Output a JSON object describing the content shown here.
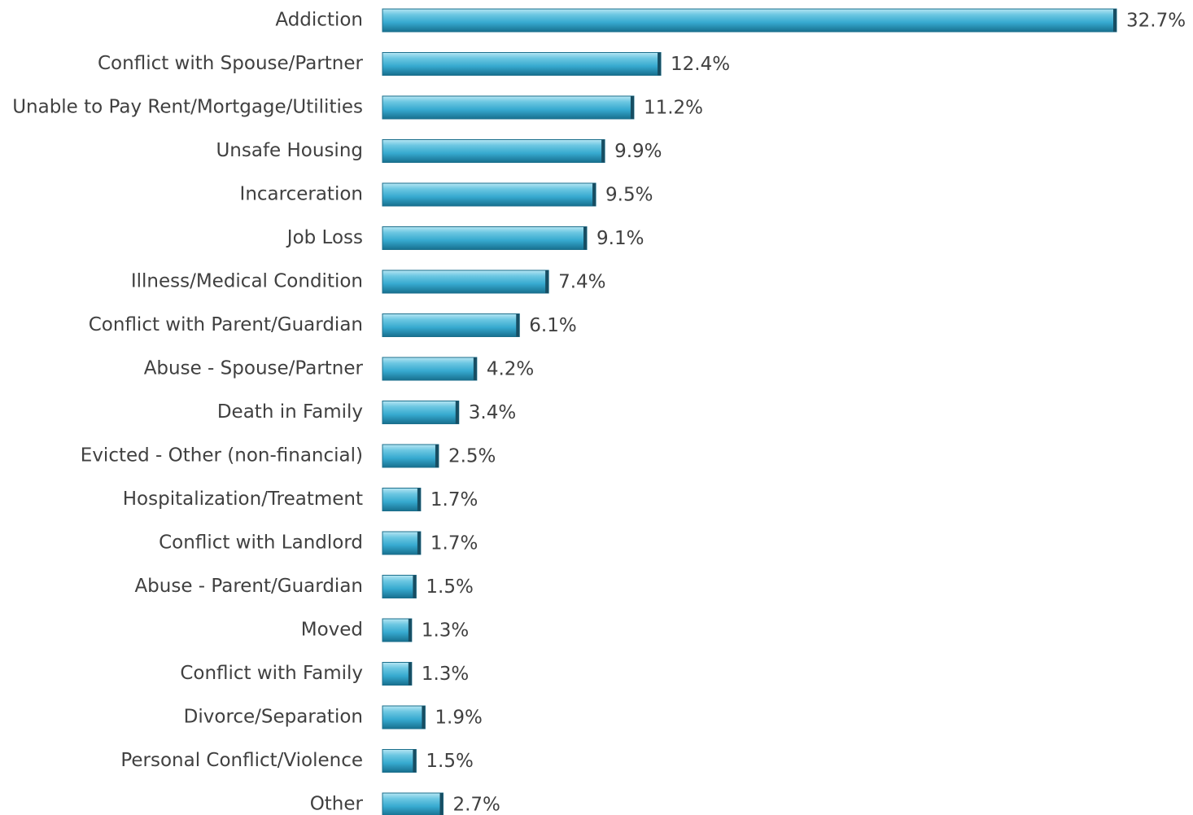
{
  "chart_data": {
    "type": "bar",
    "orientation": "horizontal",
    "categories": [
      "Addiction",
      "Conflict with Spouse/Partner",
      "Unable to Pay Rent/Mortgage/Utilities",
      "Unsafe Housing",
      "Incarceration",
      "Job Loss",
      "Illness/Medical Condition",
      "Conflict with Parent/Guardian",
      "Abuse - Spouse/Partner",
      "Death in Family",
      "Evicted - Other (non-financial)",
      "Hospitalization/Treatment",
      "Conflict with Landlord",
      "Abuse - Parent/Guardian",
      "Moved",
      "Conflict with Family",
      "Divorce/Separation",
      "Personal Conflict/Violence",
      "Other"
    ],
    "values": [
      32.7,
      12.4,
      11.2,
      9.9,
      9.5,
      9.1,
      7.4,
      6.1,
      4.2,
      3.4,
      2.5,
      1.7,
      1.7,
      1.5,
      1.3,
      1.3,
      1.9,
      1.5,
      2.7
    ],
    "value_labels": [
      "32.7%",
      "12.4%",
      "11.2%",
      "9.9%",
      "9.5%",
      "9.1%",
      "7.4%",
      "6.1%",
      "4.2%",
      "3.4%",
      "2.5%",
      "1.7%",
      "1.7%",
      "1.5%",
      "1.3%",
      "1.3%",
      "1.9%",
      "1.5%",
      "2.7%"
    ],
    "color": "#3aaed3"
  }
}
